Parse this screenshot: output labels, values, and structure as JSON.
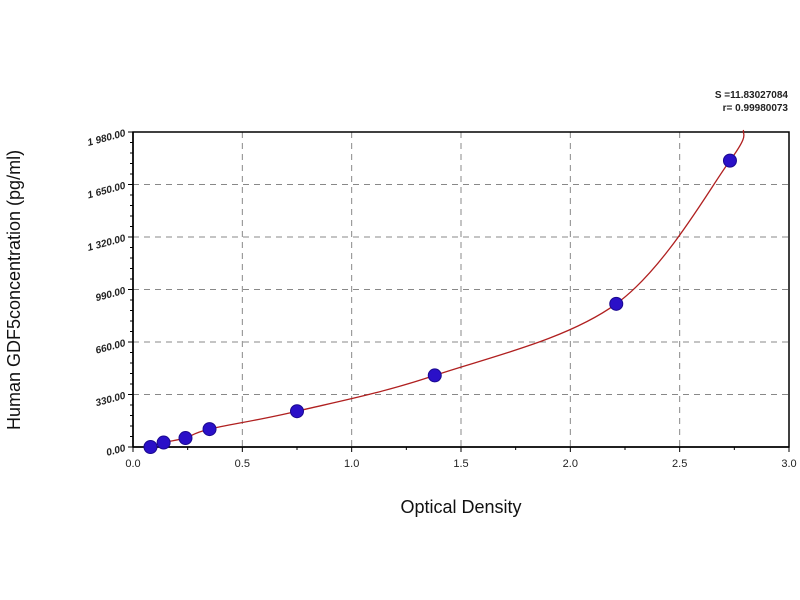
{
  "chart_data": {
    "type": "scatter",
    "title": "",
    "xlabel": "Optical Density",
    "ylabel": "Human GDF5concentration (pg/ml)",
    "xlim": [
      0,
      3.0
    ],
    "ylim": [
      0,
      1980
    ],
    "xticks": [
      "0.0",
      "0.5",
      "1.0",
      "1.5",
      "2.0",
      "2.5",
      "3.0"
    ],
    "xtick_values": [
      0,
      0.5,
      1.0,
      1.5,
      2.0,
      2.5,
      3.0
    ],
    "yticks": [
      "0.00",
      "330.00",
      "660.00",
      "990.00",
      "1 320.00",
      "1 650.00",
      "1 980.00"
    ],
    "ytick_values": [
      0,
      330,
      660,
      990,
      1320,
      1650,
      1980
    ],
    "grid": true,
    "grid_style": "dashed",
    "points": [
      {
        "x": 0.08,
        "y": 0
      },
      {
        "x": 0.14,
        "y": 28.13
      },
      {
        "x": 0.24,
        "y": 56.25
      },
      {
        "x": 0.35,
        "y": 112.5
      },
      {
        "x": 0.75,
        "y": 225
      },
      {
        "x": 1.38,
        "y": 450
      },
      {
        "x": 2.21,
        "y": 900
      },
      {
        "x": 2.73,
        "y": 1800
      }
    ],
    "fit_curve": true,
    "annotations": [
      "S =11.83027084",
      "r= 0.99980073"
    ],
    "colors": {
      "points": "#2a10c8",
      "curve": "#b02020",
      "grid": "#888888"
    }
  }
}
